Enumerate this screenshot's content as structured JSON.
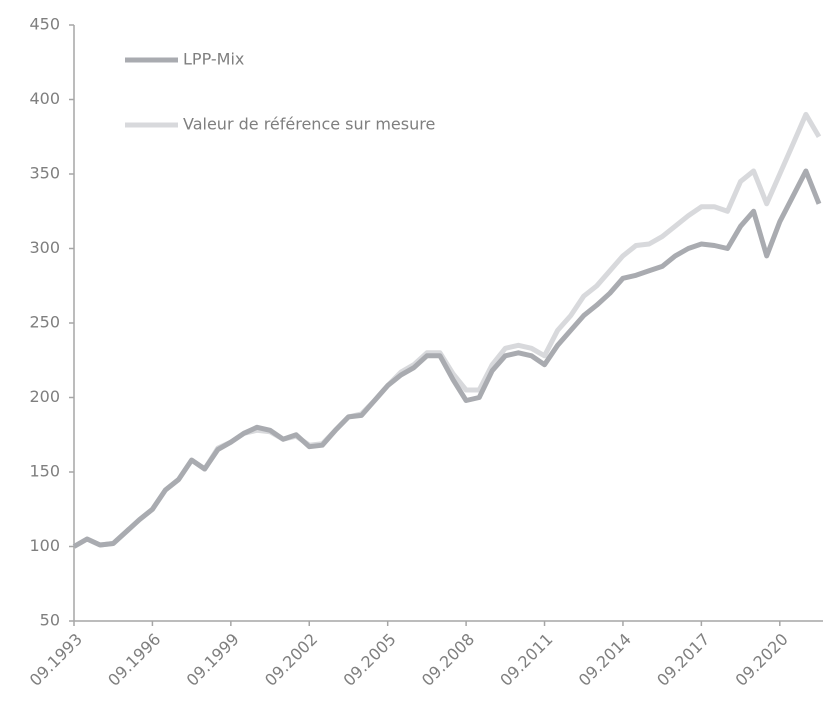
{
  "chart_data": {
    "type": "line",
    "x": [
      "09.1993",
      "03.1994",
      "09.1994",
      "03.1995",
      "09.1995",
      "03.1996",
      "09.1996",
      "03.1997",
      "09.1997",
      "03.1998",
      "09.1998",
      "03.1999",
      "09.1999",
      "03.2000",
      "09.2000",
      "03.2001",
      "09.2001",
      "03.2002",
      "09.2002",
      "03.2003",
      "09.2003",
      "03.2004",
      "09.2004",
      "03.2005",
      "09.2005",
      "03.2006",
      "09.2006",
      "03.2007",
      "09.2007",
      "03.2008",
      "09.2008",
      "03.2009",
      "09.2009",
      "03.2010",
      "09.2010",
      "03.2011",
      "09.2011",
      "03.2012",
      "09.2012",
      "03.2013",
      "09.2013",
      "03.2014",
      "09.2014",
      "03.2015",
      "09.2015",
      "03.2016",
      "09.2016",
      "03.2017",
      "09.2017",
      "03.2018",
      "09.2018",
      "03.2019",
      "09.2019",
      "03.2020",
      "09.2020",
      "03.2021",
      "09.2021",
      "03.2022"
    ],
    "series": [
      {
        "name": "LPP-Mix",
        "color": "#a9abb0",
        "values": [
          100,
          105,
          101,
          102,
          110,
          118,
          125,
          138,
          145,
          158,
          152,
          165,
          170,
          176,
          180,
          178,
          172,
          175,
          167,
          168,
          178,
          187,
          188,
          198,
          208,
          215,
          220,
          228,
          228,
          212,
          198,
          200,
          218,
          228,
          230,
          228,
          222,
          235,
          245,
          255,
          262,
          270,
          280,
          282,
          285,
          288,
          295,
          300,
          303,
          302,
          300,
          315,
          325,
          295,
          318,
          335,
          352,
          330
        ]
      },
      {
        "name": "Valeur de référence sur mesure",
        "color": "#d8d9dc",
        "values": [
          100,
          105,
          101,
          102,
          110,
          118,
          125,
          138,
          145,
          158,
          152,
          166,
          170,
          176,
          178,
          177,
          172,
          174,
          168,
          169,
          178,
          187,
          189,
          198,
          208,
          217,
          222,
          230,
          230,
          216,
          205,
          205,
          222,
          233,
          235,
          233,
          228,
          245,
          255,
          268,
          275,
          285,
          295,
          302,
          303,
          308,
          315,
          322,
          328,
          328,
          325,
          345,
          352,
          330,
          350,
          370,
          390,
          375
        ]
      }
    ],
    "xlim": [
      "09.1993",
      "03.2022"
    ],
    "xticks": [
      "09.1993",
      "09.1996",
      "09.1999",
      "09.2002",
      "09.2005",
      "09.2008",
      "09.2011",
      "09.2014",
      "09.2017",
      "09.2020"
    ],
    "ylim": [
      50,
      450
    ],
    "yticks": [
      50,
      100,
      150,
      200,
      250,
      300,
      350,
      400,
      450
    ],
    "grid": false
  }
}
